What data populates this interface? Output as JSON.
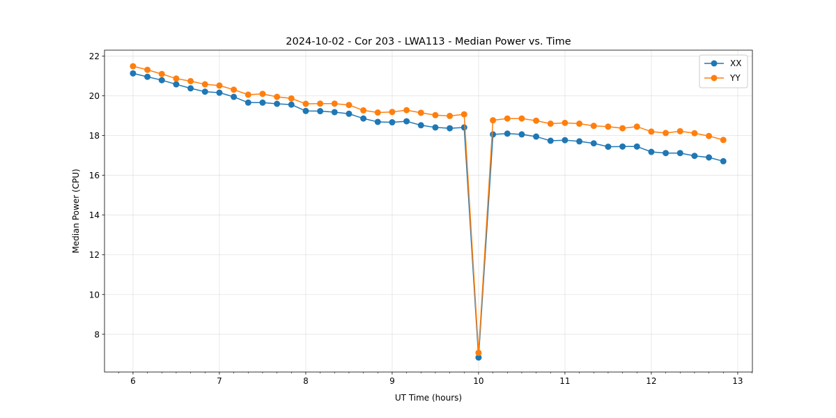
{
  "chart_data": {
    "type": "line",
    "title": "2024-10-02 - Cor 203 - LWA113 - Median Power vs. Time",
    "xlabel": "UT Time (hours)",
    "ylabel": "Median Power (CPU)",
    "xlim": [
      5.67,
      13.17
    ],
    "ylim": [
      6.1,
      22.3
    ],
    "xticks": [
      6,
      7,
      8,
      9,
      10,
      11,
      12,
      13
    ],
    "yticks": [
      8,
      10,
      12,
      14,
      16,
      18,
      20,
      22
    ],
    "grid": true,
    "legend_position": "top-right",
    "x": [
      6.0,
      6.1667,
      6.3333,
      6.5,
      6.6667,
      6.8333,
      7.0,
      7.1667,
      7.3333,
      7.5,
      7.6667,
      7.8333,
      8.0,
      8.1667,
      8.3333,
      8.5,
      8.6667,
      8.8333,
      9.0,
      9.1667,
      9.3333,
      9.5,
      9.6667,
      9.8333,
      10.0,
      10.1667,
      10.3333,
      10.5,
      10.6667,
      10.8333,
      11.0,
      11.1667,
      11.3333,
      11.5,
      11.6667,
      11.8333,
      12.0,
      12.1667,
      12.3333,
      12.5,
      12.6667,
      12.8333
    ],
    "series": [
      {
        "name": "XX",
        "color": "#1f77b4",
        "values": [
          21.13,
          20.96,
          20.79,
          20.58,
          20.38,
          20.21,
          20.16,
          19.95,
          19.66,
          19.66,
          19.6,
          19.56,
          19.24,
          19.23,
          19.18,
          19.1,
          18.86,
          18.69,
          18.67,
          18.72,
          18.52,
          18.41,
          18.37,
          18.41,
          6.83,
          18.06,
          18.1,
          18.06,
          17.95,
          17.74,
          17.77,
          17.71,
          17.61,
          17.44,
          17.45,
          17.45,
          17.18,
          17.12,
          17.12,
          16.98,
          16.9,
          16.71
        ]
      },
      {
        "name": "YY",
        "color": "#ff7f0e",
        "values": [
          21.49,
          21.31,
          21.1,
          20.87,
          20.74,
          20.58,
          20.52,
          20.31,
          20.06,
          20.1,
          19.95,
          19.87,
          19.6,
          19.61,
          19.61,
          19.54,
          19.27,
          19.16,
          19.19,
          19.28,
          19.15,
          19.03,
          18.99,
          19.07,
          7.07,
          18.77,
          18.86,
          18.86,
          18.75,
          18.6,
          18.64,
          18.6,
          18.49,
          18.45,
          18.37,
          18.45,
          18.2,
          18.13,
          18.22,
          18.12,
          17.98,
          17.78
        ]
      }
    ]
  }
}
